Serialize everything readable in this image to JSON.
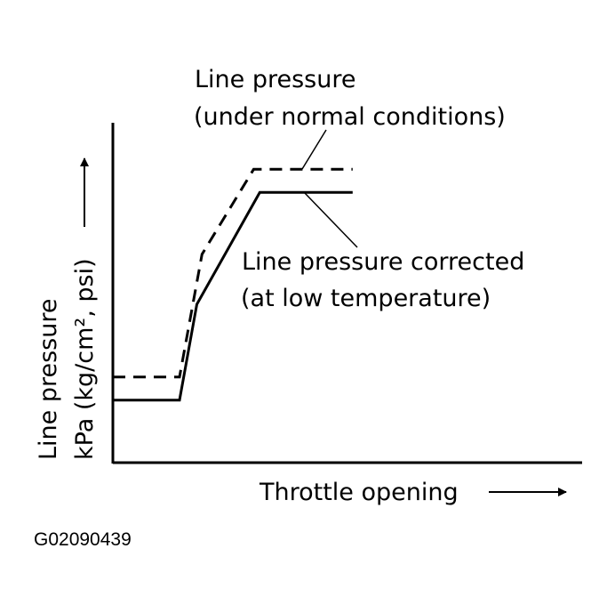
{
  "chart_data": {
    "type": "line",
    "title": "",
    "xlabel": "Throttle opening",
    "ylabel_line1": "Line pressure",
    "ylabel_line2": "kPa (kg/cm², psi)",
    "x_range": [
      0,
      100
    ],
    "y_range": [
      0,
      100
    ],
    "grid": false,
    "series": [
      {
        "name": "Line pressure (under normal conditions)",
        "label_line1": "Line pressure",
        "label_line2": "(under normal conditions)",
        "style": "dashed",
        "x": [
          0,
          14.2,
          19.0,
          30.0,
          51.1
        ],
        "y": [
          25.2,
          25.2,
          61.3,
          86.3,
          86.3
        ]
      },
      {
        "name": "Line pressure corrected (at low temperature)",
        "label_line1": "Line pressure corrected",
        "label_line2": "(at low temperature)",
        "style": "solid",
        "x": [
          0,
          14.2,
          17.9,
          31.3,
          51.1
        ],
        "y": [
          18.4,
          18.4,
          46.6,
          79.5,
          79.5
        ]
      }
    ]
  },
  "figure_code": "G02090439"
}
